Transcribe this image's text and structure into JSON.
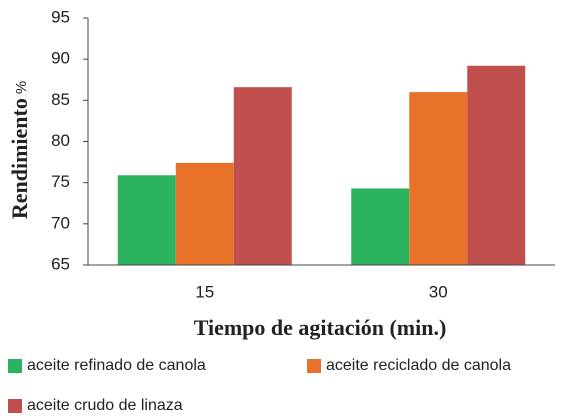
{
  "chart_data": {
    "type": "bar",
    "ylabel": "Rendimiento",
    "ylabel_unit": "%",
    "xlabel": "Tiempo de agitación (min.)",
    "categories": [
      "15",
      "30"
    ],
    "series": [
      {
        "name": "aceite refinado de canola",
        "color": "#2cb35f",
        "values": [
          75.9,
          74.3
        ]
      },
      {
        "name": "aceite reciclado de canola",
        "color": "#e8722a",
        "values": [
          77.4,
          86.0
        ]
      },
      {
        "name": "aceite crudo de linaza",
        "color": "#c0504d",
        "values": [
          86.6,
          89.2
        ]
      }
    ],
    "ylim": [
      65,
      95
    ],
    "yticks": [
      65,
      70,
      75,
      80,
      85,
      90,
      95
    ],
    "grid": false
  }
}
